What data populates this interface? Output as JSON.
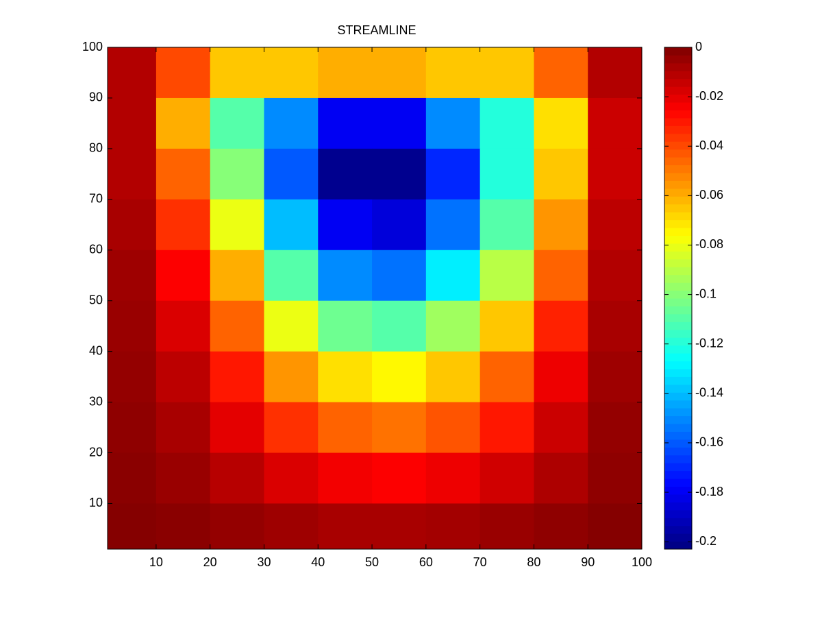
{
  "chart_data": {
    "type": "heatmap",
    "title": "STREAMLINE",
    "colormap": "jet",
    "x": [
      5,
      15,
      25,
      35,
      45,
      55,
      65,
      75,
      85,
      95
    ],
    "y": [
      95,
      85,
      75,
      65,
      55,
      45,
      35,
      25,
      15,
      5
    ],
    "values": [
      [
        -0.01,
        -0.04,
        -0.065,
        -0.065,
        -0.06,
        -0.06,
        -0.065,
        -0.065,
        -0.045,
        -0.01
      ],
      [
        -0.01,
        -0.06,
        -0.11,
        -0.15,
        -0.18,
        -0.18,
        -0.15,
        -0.12,
        -0.07,
        -0.015
      ],
      [
        -0.01,
        -0.045,
        -0.1,
        -0.16,
        -0.2,
        -0.2,
        -0.17,
        -0.12,
        -0.065,
        -0.015
      ],
      [
        -0.008,
        -0.035,
        -0.08,
        -0.14,
        -0.18,
        -0.185,
        -0.155,
        -0.11,
        -0.055,
        -0.012
      ],
      [
        -0.006,
        -0.025,
        -0.06,
        -0.11,
        -0.15,
        -0.155,
        -0.13,
        -0.09,
        -0.045,
        -0.01
      ],
      [
        -0.005,
        -0.018,
        -0.045,
        -0.08,
        -0.105,
        -0.11,
        -0.095,
        -0.065,
        -0.032,
        -0.008
      ],
      [
        -0.004,
        -0.012,
        -0.03,
        -0.055,
        -0.07,
        -0.075,
        -0.065,
        -0.045,
        -0.022,
        -0.006
      ],
      [
        -0.003,
        -0.008,
        -0.02,
        -0.035,
        -0.045,
        -0.048,
        -0.042,
        -0.03,
        -0.015,
        -0.004
      ],
      [
        -0.002,
        -0.005,
        -0.011,
        -0.018,
        -0.023,
        -0.025,
        -0.022,
        -0.016,
        -0.009,
        -0.003
      ],
      [
        -0.001,
        -0.002,
        -0.004,
        -0.006,
        -0.008,
        -0.008,
        -0.007,
        -0.005,
        -0.003,
        -0.001
      ]
    ],
    "xlim": [
      1,
      100
    ],
    "ylim": [
      1,
      100
    ],
    "xticks": [
      10,
      20,
      30,
      40,
      50,
      60,
      70,
      80,
      90,
      100
    ],
    "yticks": [
      10,
      20,
      30,
      40,
      50,
      60,
      70,
      80,
      90,
      100
    ],
    "clim": [
      -0.203,
      0
    ],
    "cticks": [
      0,
      -0.02,
      -0.04,
      -0.06,
      -0.08,
      -0.1,
      -0.12,
      -0.14,
      -0.16,
      -0.18,
      -0.2
    ]
  }
}
